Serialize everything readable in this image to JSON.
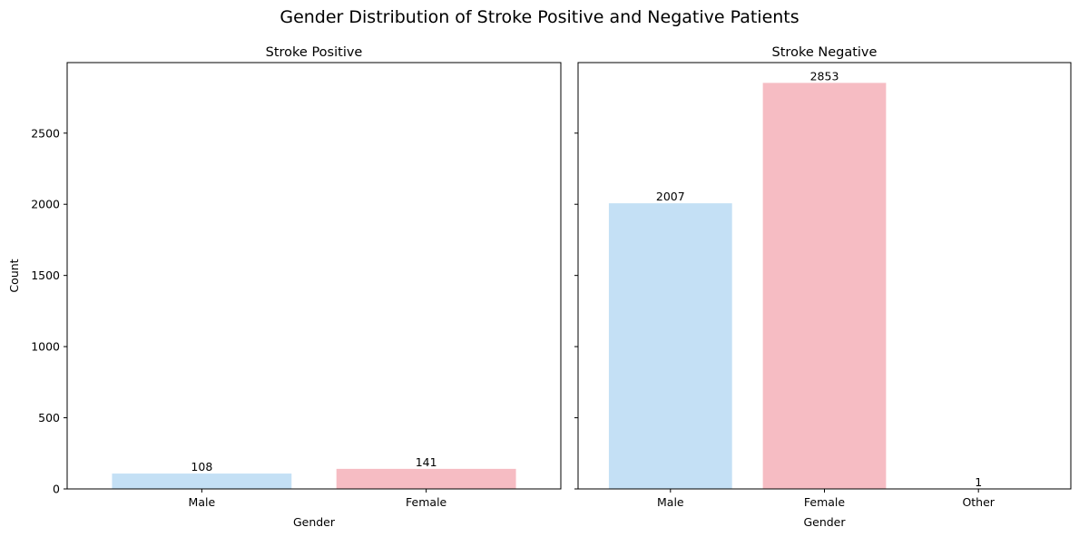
{
  "figure": {
    "suptitle": "Gender Distribution of Stroke Positive and Negative Patients"
  },
  "colors": {
    "Male": "#c4e0f5",
    "Female": "#f6bcc3",
    "Other": "#c4e0f5"
  },
  "chart_data": [
    {
      "type": "bar",
      "title": "Stroke Positive",
      "xlabel": "Gender",
      "ylabel": "Count",
      "categories": [
        "Male",
        "Female"
      ],
      "values": [
        108,
        141
      ],
      "data_labels": [
        "108",
        "141"
      ],
      "ylim": [
        0,
        2995.65
      ],
      "yticks": [
        0,
        500,
        1000,
        1500,
        2000,
        2500
      ],
      "ytick_labels": [
        "0",
        "500",
        "1000",
        "1500",
        "2000",
        "2500"
      ],
      "show_ytick_labels": true,
      "grid": false
    },
    {
      "type": "bar",
      "title": "Stroke Negative",
      "xlabel": "Gender",
      "ylabel": "",
      "categories": [
        "Male",
        "Female",
        "Other"
      ],
      "values": [
        2007,
        2853,
        1
      ],
      "data_labels": [
        "2007",
        "2853",
        "1"
      ],
      "ylim": [
        0,
        2995.65
      ],
      "yticks": [
        0,
        500,
        1000,
        1500,
        2000,
        2500
      ],
      "ytick_labels": [
        "",
        "",
        "",
        "",
        "",
        ""
      ],
      "show_ytick_labels": false,
      "grid": false
    }
  ]
}
